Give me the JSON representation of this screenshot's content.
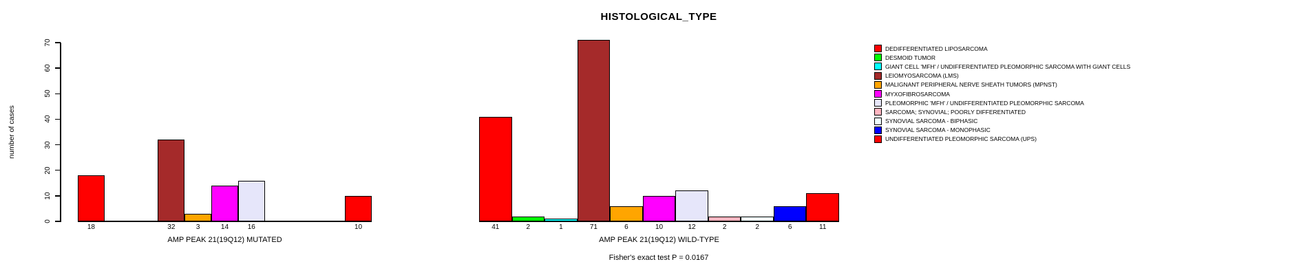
{
  "chart_data": {
    "type": "bar",
    "title": "HISTOLOGICAL_TYPE",
    "ylabel": "number of cases",
    "ylim": [
      0,
      70
    ],
    "yticks": [
      0,
      10,
      20,
      30,
      40,
      50,
      60,
      70
    ],
    "grid": false,
    "legend_position": "right",
    "footnote": "Fisher's exact test P = 0.0167",
    "categories": [
      "DEDIFFERENTIATED LIPOSARCOMA",
      "DESMOID TUMOR",
      "GIANT CELL 'MFH' / UNDIFFERENTIATED PLEOMORPHIC SARCOMA WITH GIANT CELLS",
      "LEIOMYOSARCOMA (LMS)",
      "MALIGNANT PERIPHERAL NERVE SHEATH TUMORS (MPNST)",
      "MYXOFIBROSARCOMA",
      "PLEOMORPHIC 'MFH' / UNDIFFERENTIATED PLEOMORPHIC SARCOMA",
      "SARCOMA; SYNOVIAL; POORLY DIFFERENTIATED",
      "SYNOVIAL SARCOMA - BIPHASIC",
      "SYNOVIAL SARCOMA - MONOPHASIC",
      "UNDIFFERENTIATED PLEOMORPHIC SARCOMA (UPS)"
    ],
    "colors": [
      "#FF0000",
      "#00FF00",
      "#00FFFF",
      "#A52A2A",
      "#FFA500",
      "#FF00FF",
      "#E6E6FA",
      "#FFB6C1",
      "#F0FFFF",
      "#0000FF",
      "#FF0000"
    ],
    "series": [
      {
        "name": "AMP PEAK 21(19Q12) MUTATED",
        "values": [
          18,
          0,
          0,
          32,
          3,
          14,
          16,
          0,
          0,
          0,
          10
        ]
      },
      {
        "name": "AMP PEAK 21(19Q12) WILD-TYPE",
        "values": [
          41,
          2,
          1,
          71,
          6,
          10,
          12,
          2,
          2,
          6,
          11
        ]
      }
    ]
  }
}
